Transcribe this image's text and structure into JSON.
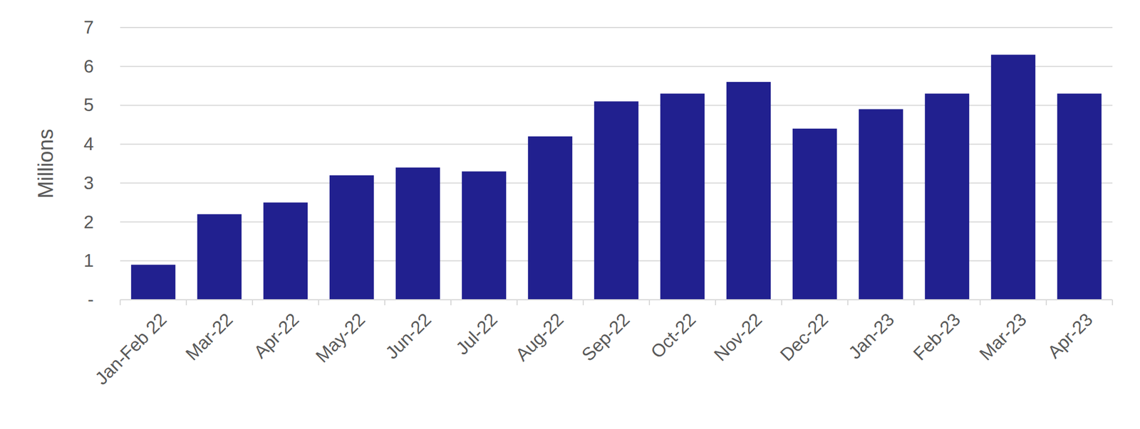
{
  "chart_data": {
    "type": "bar",
    "y_label": "Millions",
    "categories": [
      "Jan-Feb 22",
      "Mar-22",
      "Apr-22",
      "May-22",
      "Jun-22",
      "Jul-22",
      "Aug-22",
      "Sep-22",
      "Oct-22",
      "Nov-22",
      "Dec-22",
      "Jan-23",
      "Feb-23",
      "Mar-23",
      "Apr-23"
    ],
    "values": [
      0.9,
      2.2,
      2.5,
      3.2,
      3.4,
      3.3,
      4.2,
      5.1,
      5.3,
      5.6,
      4.4,
      4.9,
      5.3,
      6.3,
      5.3
    ],
    "color": "#21208f",
    "ylim": [
      0,
      7
    ],
    "yticks": [
      {
        "value": 0,
        "label": "-"
      },
      1,
      2,
      3,
      4,
      5,
      6,
      7
    ],
    "grid": true
  }
}
